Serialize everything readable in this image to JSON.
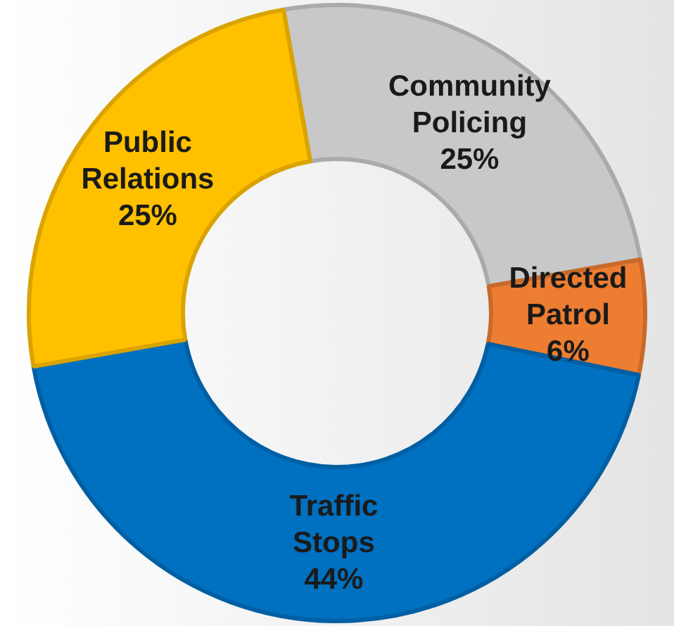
{
  "chart_data": {
    "type": "donut",
    "categories": [
      "Community Policing",
      "Directed Patrol",
      "Traffic Stops",
      "Public Relations"
    ],
    "values": [
      25,
      6,
      44,
      25
    ],
    "value_labels": [
      "25%",
      "6%",
      "44%",
      "25%"
    ],
    "colors": [
      "#c8c8c8",
      "#ed7d31",
      "#0070c0",
      "#ffc000"
    ],
    "legend": false
  }
}
